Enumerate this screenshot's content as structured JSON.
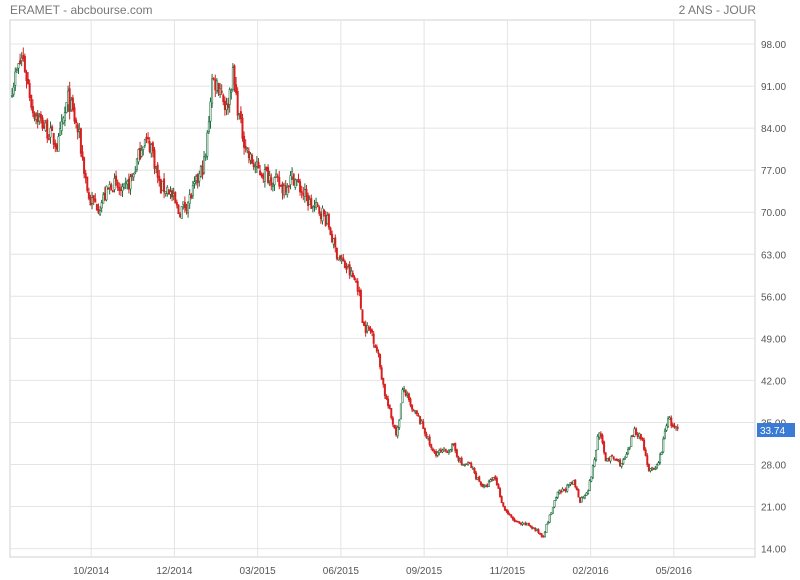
{
  "header": {
    "title": "ERAMET - abcbourse.com",
    "period": "2 ANS - JOUR"
  },
  "colors": {
    "up": "#1a6b3a",
    "down": "#d62020",
    "grid": "#e4e4e4",
    "badge": "#3a7bd5"
  },
  "chart_data": {
    "type": "candlestick",
    "title": "ERAMET - abcbourse.com",
    "subtitle": "2 ANS - JOUR",
    "x_ticks": [
      {
        "label": "10/2014",
        "t": 10
      },
      {
        "label": "12/2014",
        "t": 12
      },
      {
        "label": "03/2015",
        "t": 14
      },
      {
        "label": "06/2015",
        "t": 16
      },
      {
        "label": "09/2015",
        "t": 18
      },
      {
        "label": "11/2015",
        "t": 20
      },
      {
        "label": "02/2016",
        "t": 22
      },
      {
        "label": "05/2016",
        "t": 24
      }
    ],
    "x_range": [
      8.05,
      25.95
    ],
    "y_ticks": [
      98.0,
      91.0,
      84.0,
      77.0,
      70.0,
      63.0,
      56.0,
      49.0,
      42.0,
      35.0,
      28.0,
      21.0,
      14.0
    ],
    "y_range": [
      12.6,
      102.0
    ],
    "last_price": 33.74,
    "grid": true,
    "series": [
      {
        "values": [
          [
            8.1,
            91
          ],
          [
            8.35,
            96
          ],
          [
            8.6,
            87
          ],
          [
            8.9,
            84
          ],
          [
            9.2,
            81
          ],
          [
            9.45,
            89
          ],
          [
            9.7,
            83
          ],
          [
            9.95,
            72
          ],
          [
            10.2,
            71
          ],
          [
            10.5,
            75
          ],
          [
            10.75,
            73
          ],
          [
            11.0,
            76
          ],
          [
            11.25,
            82
          ],
          [
            11.45,
            81
          ],
          [
            11.65,
            74
          ],
          [
            11.85,
            74
          ],
          [
            12.1,
            70
          ],
          [
            12.35,
            72
          ],
          [
            12.6,
            76
          ],
          [
            12.75,
            79
          ],
          [
            12.9,
            92
          ],
          [
            13.1,
            91
          ],
          [
            13.25,
            87
          ],
          [
            13.4,
            93
          ],
          [
            13.6,
            84
          ],
          [
            13.8,
            79
          ],
          [
            14.0,
            77
          ],
          [
            14.3,
            76
          ],
          [
            14.6,
            74
          ],
          [
            14.85,
            76
          ],
          [
            15.1,
            73
          ],
          [
            15.3,
            71
          ],
          [
            15.55,
            70
          ],
          [
            15.7,
            68
          ],
          [
            15.85,
            64
          ],
          [
            16.0,
            62
          ],
          [
            16.2,
            60
          ],
          [
            16.4,
            58
          ],
          [
            16.55,
            51
          ],
          [
            16.75,
            50
          ],
          [
            16.9,
            46
          ],
          [
            17.05,
            40
          ],
          [
            17.2,
            36
          ],
          [
            17.35,
            33
          ],
          [
            17.5,
            41
          ],
          [
            17.7,
            37
          ],
          [
            17.85,
            36
          ],
          [
            18.05,
            33
          ],
          [
            18.2,
            30
          ],
          [
            18.45,
            30
          ],
          [
            18.7,
            31
          ],
          [
            18.9,
            28
          ],
          [
            19.1,
            28
          ],
          [
            19.25,
            26
          ],
          [
            19.45,
            24
          ],
          [
            19.7,
            26
          ],
          [
            19.9,
            21
          ],
          [
            20.1,
            19
          ],
          [
            20.3,
            18
          ],
          [
            20.5,
            18
          ],
          [
            20.7,
            17
          ],
          [
            20.85,
            16
          ],
          [
            21.05,
            20
          ],
          [
            21.2,
            23
          ],
          [
            21.4,
            24
          ],
          [
            21.6,
            25
          ],
          [
            21.75,
            22
          ],
          [
            21.95,
            24
          ],
          [
            22.1,
            29
          ],
          [
            22.2,
            34
          ],
          [
            22.35,
            29
          ],
          [
            22.55,
            29
          ],
          [
            22.75,
            28
          ],
          [
            22.9,
            30
          ],
          [
            23.05,
            34
          ],
          [
            23.25,
            32
          ],
          [
            23.4,
            27
          ],
          [
            23.55,
            27
          ],
          [
            23.7,
            30
          ],
          [
            23.85,
            36
          ],
          [
            24.0,
            34
          ],
          [
            24.1,
            33.74
          ]
        ]
      }
    ]
  }
}
